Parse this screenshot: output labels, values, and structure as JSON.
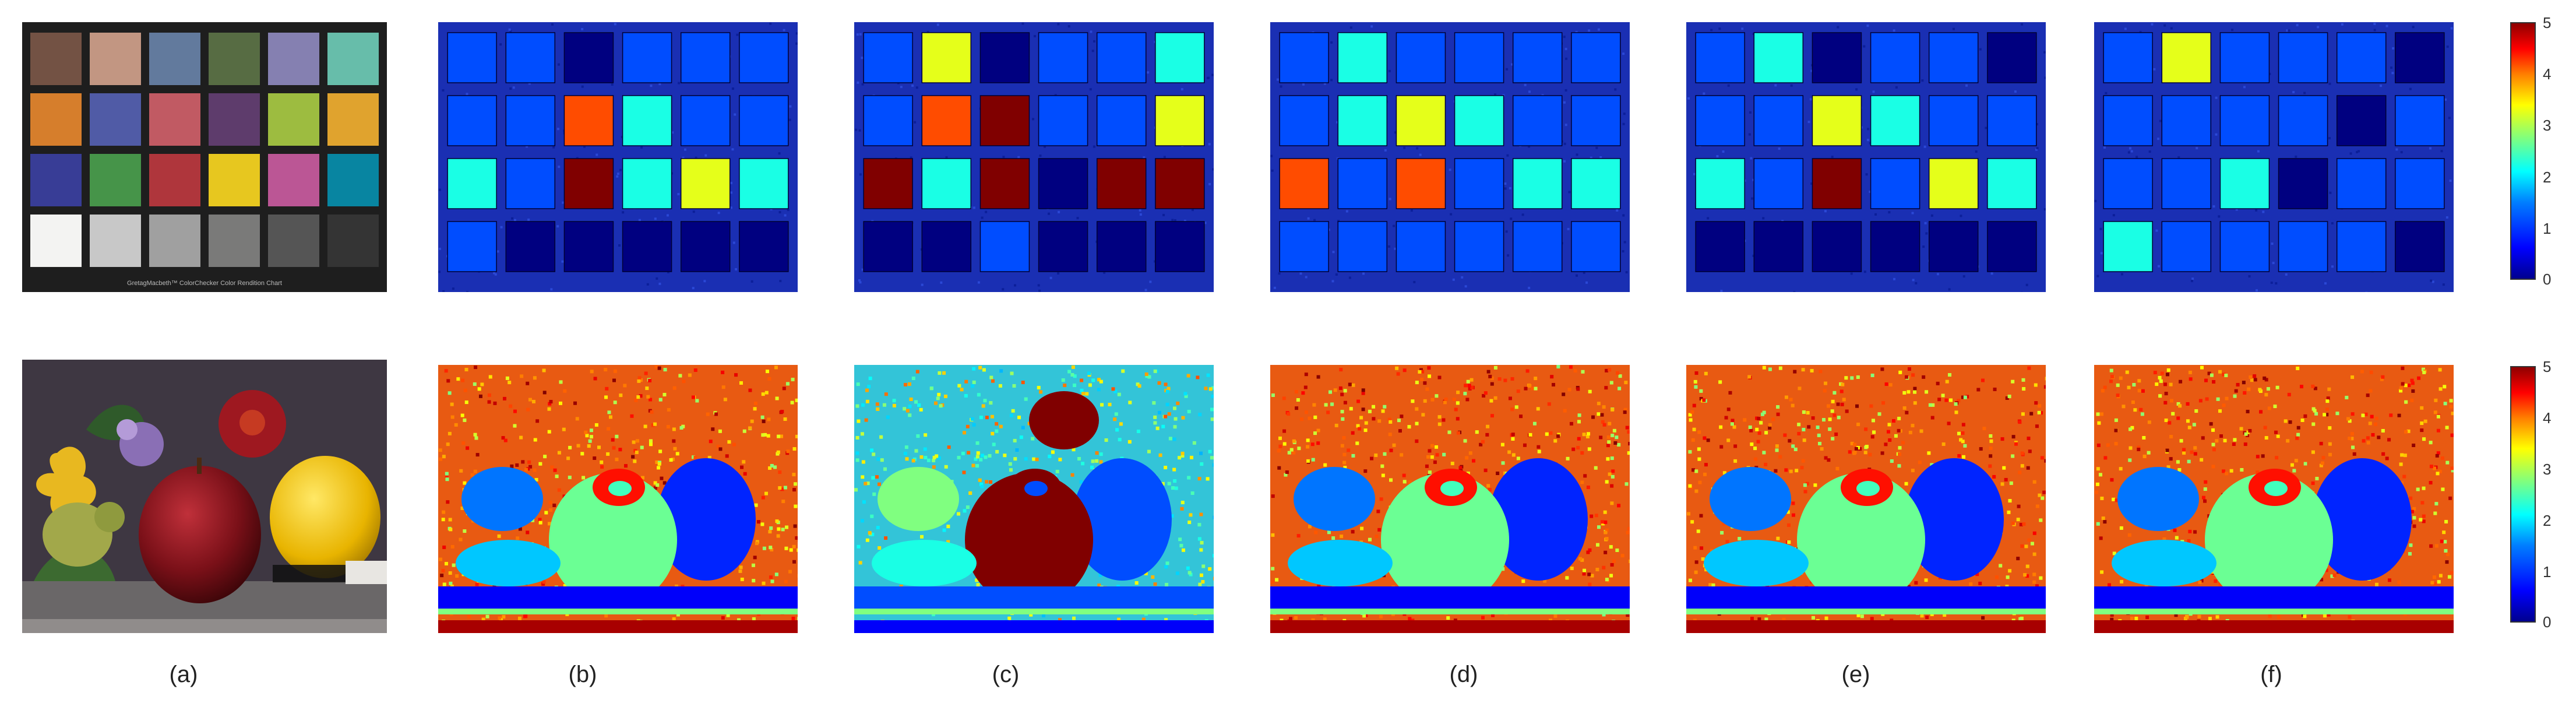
{
  "figure": {
    "captions": [
      "(a)",
      "(b)",
      "(c)",
      "(d)",
      "(e)",
      "(f)"
    ],
    "colorbar": {
      "top_ticks": [
        "5",
        "4",
        "3",
        "2",
        "1",
        "0"
      ],
      "bottom_ticks": [
        "5",
        "4",
        "3",
        "2",
        "1",
        "0"
      ]
    },
    "colorchecker_text": "GretagMacbeth™ ColorChecker Color Rendition Chart"
  },
  "colors": {
    "panel_bg": "#1a2fb3",
    "checker_dark": "#0b1a8a",
    "heat_low": "#00008f",
    "heat_mid": "#00ffff",
    "heat_high": "#8f0000"
  },
  "checker_patches": [
    "#735244",
    "#c29682",
    "#627a9d",
    "#576c43",
    "#8580b1",
    "#67bdaa",
    "#d67e2c",
    "#505ba6",
    "#c15a63",
    "#5e3c6c",
    "#9dbc40",
    "#e0a32e",
    "#383d96",
    "#469449",
    "#af363c",
    "#e7c71f",
    "#bb5695",
    "#0885a1",
    "#f3f3f2",
    "#c8c8c8",
    "#a0a0a0",
    "#7a7a79",
    "#555555",
    "#343434"
  ],
  "error_maps_top": {
    "b": [
      1,
      1,
      0,
      1,
      1,
      1,
      1,
      1,
      4,
      2,
      1,
      1,
      2,
      1,
      5,
      2,
      3,
      2,
      1,
      0,
      0,
      0,
      0,
      0
    ],
    "c": [
      1,
      3,
      0,
      1,
      1,
      2,
      1,
      4,
      5,
      1,
      1,
      3,
      5,
      2,
      5,
      0,
      5,
      5,
      0,
      0,
      1,
      0,
      0,
      0
    ],
    "d": [
      1,
      2,
      1,
      1,
      1,
      1,
      1,
      2,
      3,
      2,
      1,
      1,
      4,
      1,
      4,
      1,
      2,
      2,
      1,
      1,
      1,
      1,
      1,
      1
    ],
    "e": [
      1,
      2,
      0,
      1,
      1,
      0,
      1,
      1,
      3,
      2,
      1,
      1,
      2,
      1,
      5,
      1,
      3,
      2,
      0,
      0,
      0,
      0,
      0,
      0
    ],
    "f": [
      1,
      3,
      1,
      1,
      1,
      0,
      1,
      1,
      1,
      1,
      0,
      1,
      1,
      1,
      2,
      0,
      1,
      1,
      2,
      1,
      1,
      1,
      1,
      0
    ]
  }
}
